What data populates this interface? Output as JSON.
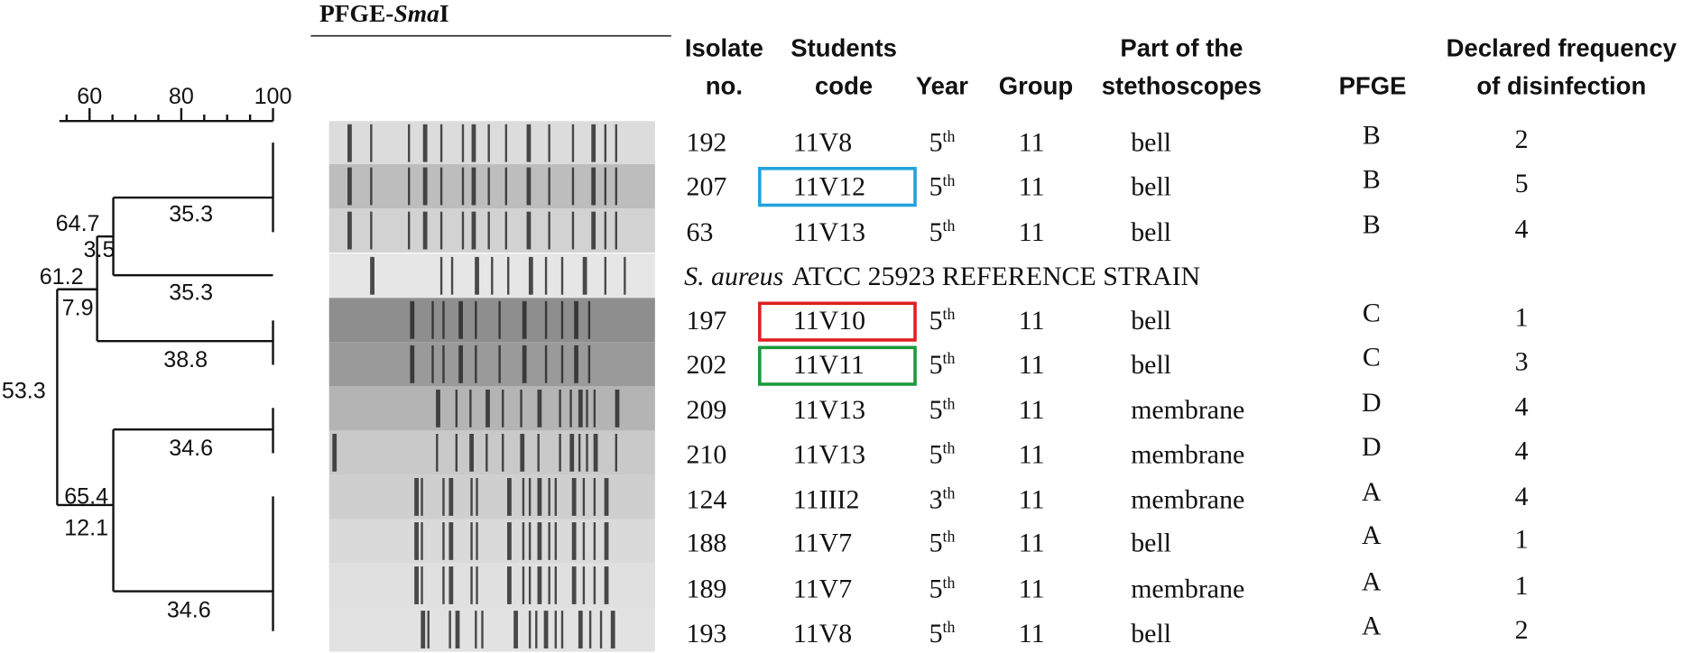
{
  "dendrogram": {
    "scale_labels": [
      "60",
      "80",
      "100"
    ],
    "node_labels": [
      "64.7",
      "3.5",
      "61.2",
      "7.9",
      "53.3",
      "65.4",
      "12.1"
    ],
    "branch_labels": [
      "35.3",
      "35.3",
      "38.8",
      "34.6",
      "34.6"
    ]
  },
  "gel": {
    "title_prefix": "PFGE-",
    "title_italic": "Sma",
    "title_suffix": "I"
  },
  "table": {
    "headers": [
      [
        "Isolate",
        "no."
      ],
      [
        "Students",
        "code"
      ],
      [
        "Year"
      ],
      [
        "Group"
      ],
      [
        "Part of the",
        "stethoscopes"
      ],
      [
        "PFGE"
      ],
      [
        "Declared frequency",
        "of disinfection"
      ]
    ],
    "rows": [
      [
        "192",
        "11V8",
        "5",
        "th",
        "11",
        "bell",
        "B",
        "2"
      ],
      [
        "207",
        "11V12",
        "5",
        "th",
        "11",
        "bell",
        "B",
        "5"
      ],
      [
        "63",
        "11V13",
        "5",
        "th",
        "11",
        "bell",
        "B",
        "4"
      ],
      [
        "197",
        "11V10",
        "5",
        "th",
        "11",
        "bell",
        "C",
        "1"
      ],
      [
        "202",
        "11V11",
        "5",
        "th",
        "11",
        "bell",
        "C",
        "3"
      ],
      [
        "209",
        "11V13",
        "5",
        "th",
        "11",
        "membrane",
        "D",
        "4"
      ],
      [
        "210",
        "11V13",
        "5",
        "th",
        "11",
        "membrane",
        "D",
        "4"
      ],
      [
        "124",
        "11III2",
        "3",
        "th",
        "11",
        "membrane",
        "A",
        "4"
      ],
      [
        "188",
        "11V7",
        "5",
        "th",
        "11",
        "bell",
        "A",
        "1"
      ],
      [
        "189",
        "11V7",
        "5",
        "th",
        "11",
        "membrane",
        "A",
        "1"
      ],
      [
        "193",
        "11V8",
        "5",
        "th",
        "11",
        "bell",
        "A",
        "2"
      ]
    ],
    "reference": {
      "species": "S. aureus",
      "strain": "ATCC 25923 REFERENCE STRAIN"
    }
  }
}
